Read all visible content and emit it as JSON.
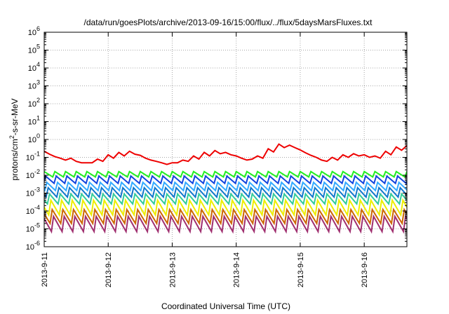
{
  "chart_data": {
    "type": "line",
    "title": "/data/run/goesPlots/archive/2013-09-16/15:00/flux/../flux/5daysMarsFluxes.txt",
    "xlabel": "Coordinated Universal Time (UTC)",
    "ylabel_main": "protons/cm",
    "ylabel_sup": "2",
    "ylabel_tail": "-s-sr-MeV",
    "y_scale": "log",
    "ylim": [
      1e-06,
      1000000.0
    ],
    "y_ticks": [
      {
        "value": 1e-06,
        "base": "10",
        "exp": "-6"
      },
      {
        "value": 1e-05,
        "base": "10",
        "exp": "-5"
      },
      {
        "value": 0.0001,
        "base": "10",
        "exp": "-4"
      },
      {
        "value": 0.001,
        "base": "10",
        "exp": "-3"
      },
      {
        "value": 0.01,
        "base": "10",
        "exp": "-2"
      },
      {
        "value": 0.1,
        "base": "10",
        "exp": "-1"
      },
      {
        "value": 1,
        "base": "10",
        "exp": "0"
      },
      {
        "value": 10,
        "base": "10",
        "exp": "1"
      },
      {
        "value": 100,
        "base": "10",
        "exp": "2"
      },
      {
        "value": 1000,
        "base": "10",
        "exp": "3"
      },
      {
        "value": 10000,
        "base": "10",
        "exp": "4"
      },
      {
        "value": 100000,
        "base": "10",
        "exp": "5"
      },
      {
        "value": 1000000,
        "base": "10",
        "exp": "6"
      }
    ],
    "xlim": [
      "2013-09-11 00:00",
      "2013-09-16 16:00"
    ],
    "x_ticks": [
      "2013-9-11",
      "2013-9-12",
      "2013-9-13",
      "2013-9-14",
      "2013-9-15",
      "2013-9-16"
    ],
    "grid": true,
    "legend": "none",
    "series": [
      {
        "color": "#ee0000",
        "x": [
          "2013-09-11 00:00",
          "2013-09-11 02:00",
          "2013-09-11 04:00",
          "2013-09-11 06:00",
          "2013-09-11 08:00",
          "2013-09-11 10:00",
          "2013-09-11 12:00",
          "2013-09-11 14:00",
          "2013-09-11 16:00",
          "2013-09-11 18:00",
          "2013-09-11 20:00",
          "2013-09-11 22:00",
          "2013-09-12 00:00",
          "2013-09-12 02:00",
          "2013-09-12 04:00",
          "2013-09-12 06:00",
          "2013-09-12 08:00",
          "2013-09-12 10:00",
          "2013-09-12 12:00",
          "2013-09-12 14:00",
          "2013-09-12 16:00",
          "2013-09-12 18:00",
          "2013-09-12 20:00",
          "2013-09-12 22:00",
          "2013-09-13 00:00",
          "2013-09-13 02:00",
          "2013-09-13 04:00",
          "2013-09-13 06:00",
          "2013-09-13 08:00",
          "2013-09-13 10:00",
          "2013-09-13 12:00",
          "2013-09-13 14:00",
          "2013-09-13 16:00",
          "2013-09-13 18:00",
          "2013-09-13 20:00",
          "2013-09-13 22:00",
          "2013-09-14 00:00",
          "2013-09-14 02:00",
          "2013-09-14 04:00",
          "2013-09-14 06:00",
          "2013-09-14 08:00",
          "2013-09-14 10:00",
          "2013-09-14 12:00",
          "2013-09-14 14:00",
          "2013-09-14 16:00",
          "2013-09-14 18:00",
          "2013-09-14 20:00",
          "2013-09-14 22:00",
          "2013-09-15 00:00",
          "2013-09-15 02:00",
          "2013-09-15 04:00",
          "2013-09-15 06:00",
          "2013-09-15 08:00",
          "2013-09-15 10:00",
          "2013-09-15 12:00",
          "2013-09-15 14:00",
          "2013-09-15 16:00",
          "2013-09-15 18:00",
          "2013-09-15 20:00",
          "2013-09-15 22:00",
          "2013-09-16 00:00",
          "2013-09-16 02:00",
          "2013-09-16 04:00",
          "2013-09-16 06:00",
          "2013-09-16 08:00",
          "2013-09-16 10:00",
          "2013-09-16 12:00",
          "2013-09-16 14:00",
          "2013-09-16 16:00"
        ],
        "y": [
          0.22,
          0.15,
          0.11,
          0.09,
          0.07,
          0.09,
          0.06,
          0.05,
          0.05,
          0.05,
          0.08,
          0.06,
          0.14,
          0.09,
          0.19,
          0.12,
          0.22,
          0.15,
          0.13,
          0.09,
          0.07,
          0.06,
          0.05,
          0.04,
          0.05,
          0.05,
          0.07,
          0.06,
          0.12,
          0.08,
          0.19,
          0.12,
          0.24,
          0.16,
          0.19,
          0.14,
          0.12,
          0.09,
          0.07,
          0.08,
          0.12,
          0.09,
          0.3,
          0.2,
          0.55,
          0.35,
          0.48,
          0.35,
          0.26,
          0.18,
          0.13,
          0.1,
          0.07,
          0.06,
          0.1,
          0.07,
          0.14,
          0.1,
          0.16,
          0.12,
          0.14,
          0.1,
          0.12,
          0.09,
          0.22,
          0.14,
          0.38,
          0.25,
          0.45
        ]
      },
      {
        "color": "#22ee22",
        "x_start": "2013-09-11 00:00",
        "period_hours": 4,
        "cycles": 40,
        "peak": 0.016,
        "trough": 0.008,
        "phase_hours": 0
      },
      {
        "color": "#1144dd",
        "x_start": "2013-09-11 00:00",
        "period_hours": 4,
        "cycles": 40,
        "peak": 0.009,
        "trough": 0.0035,
        "phase_hours": 0.5
      },
      {
        "color": "#33aaff",
        "x_start": "2013-09-11 00:00",
        "period_hours": 4,
        "cycles": 40,
        "peak": 0.004,
        "trough": 0.0014,
        "phase_hours": 1
      },
      {
        "color": "#1177cc",
        "x_start": "2013-09-11 00:00",
        "period_hours": 4,
        "cycles": 40,
        "peak": 0.002,
        "trough": 0.0006,
        "phase_hours": 1.5
      },
      {
        "color": "#33cc99",
        "x_start": "2013-09-11 00:00",
        "period_hours": 4,
        "cycles": 40,
        "peak": 0.0009,
        "trough": 0.00025,
        "phase_hours": 2
      },
      {
        "color": "#eeee00",
        "x_start": "2013-09-11 00:00",
        "period_hours": 4,
        "cycles": 40,
        "peak": 0.0004,
        "trough": 6e-05,
        "phase_hours": 2.5
      },
      {
        "color": "#cc6600",
        "x_start": "2013-09-11 00:00",
        "period_hours": 4,
        "cycles": 40,
        "peak": 0.00012,
        "trough": 2e-05,
        "phase_hours": 3
      },
      {
        "color": "#a03070",
        "x_start": "2013-09-11 00:00",
        "period_hours": 4,
        "cycles": 40,
        "peak": 5e-05,
        "trough": 7e-06,
        "phase_hours": 3.5
      }
    ]
  }
}
